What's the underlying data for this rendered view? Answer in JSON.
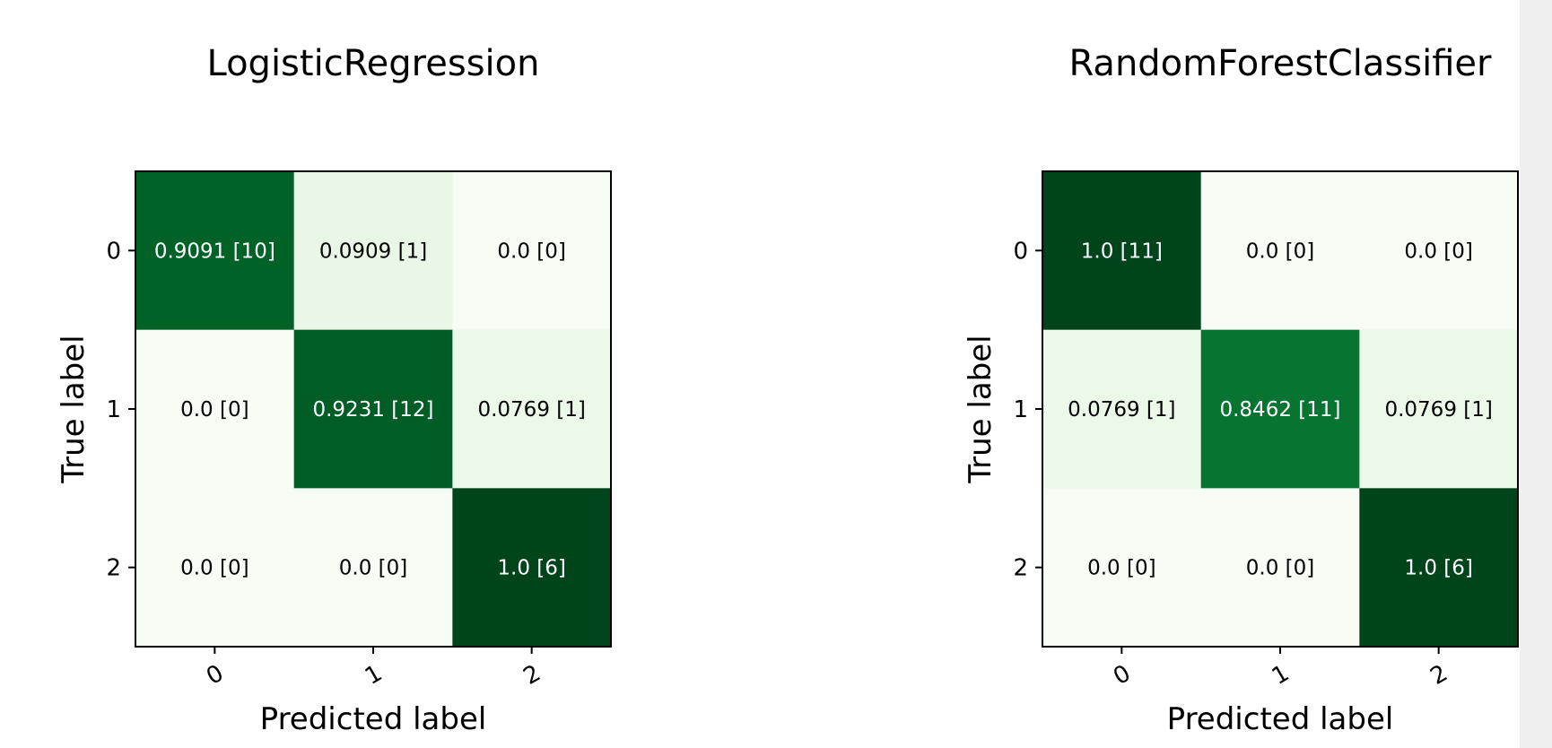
{
  "chart_data": [
    {
      "type": "heatmap",
      "title": "LogisticRegression",
      "xlabel": "Predicted label",
      "ylabel": "True label",
      "x_tick_labels": [
        "0",
        "1",
        "2"
      ],
      "y_tick_labels": [
        "0",
        "1",
        "2"
      ],
      "values": [
        [
          0.9091,
          0.0909,
          0.0
        ],
        [
          0.0,
          0.9231,
          0.0769
        ],
        [
          0.0,
          0.0,
          1.0
        ]
      ],
      "counts": [
        [
          10,
          1,
          0
        ],
        [
          0,
          12,
          1
        ],
        [
          0,
          0,
          6
        ]
      ],
      "cell_labels": [
        [
          "0.9091 [10]",
          "0.0909 [1]",
          "0.0 [0]"
        ],
        [
          "0.0 [0]",
          "0.9231 [12]",
          "0.0769 [1]"
        ],
        [
          "0.0 [0]",
          "0.0 [0]",
          "1.0 [6]"
        ]
      ],
      "colormap": "Greens",
      "colorbar": false
    },
    {
      "type": "heatmap",
      "title": "RandomForestClassifier",
      "xlabel": "Predicted label",
      "ylabel": "True label",
      "x_tick_labels": [
        "0",
        "1",
        "2"
      ],
      "y_tick_labels": [
        "0",
        "1",
        "2"
      ],
      "values": [
        [
          1.0,
          0.0,
          0.0
        ],
        [
          0.0769,
          0.8462,
          0.0769
        ],
        [
          0.0,
          0.0,
          1.0
        ]
      ],
      "counts": [
        [
          11,
          0,
          0
        ],
        [
          1,
          11,
          1
        ],
        [
          0,
          0,
          6
        ]
      ],
      "cell_labels": [
        [
          "1.0 [11]",
          "0.0 [0]",
          "0.0 [0]"
        ],
        [
          "0.0769 [1]",
          "0.8462 [11]",
          "0.0769 [1]"
        ],
        [
          "0.0 [0]",
          "0.0 [0]",
          "1.0 [6]"
        ]
      ],
      "colormap": "Greens",
      "colorbar": false
    }
  ]
}
